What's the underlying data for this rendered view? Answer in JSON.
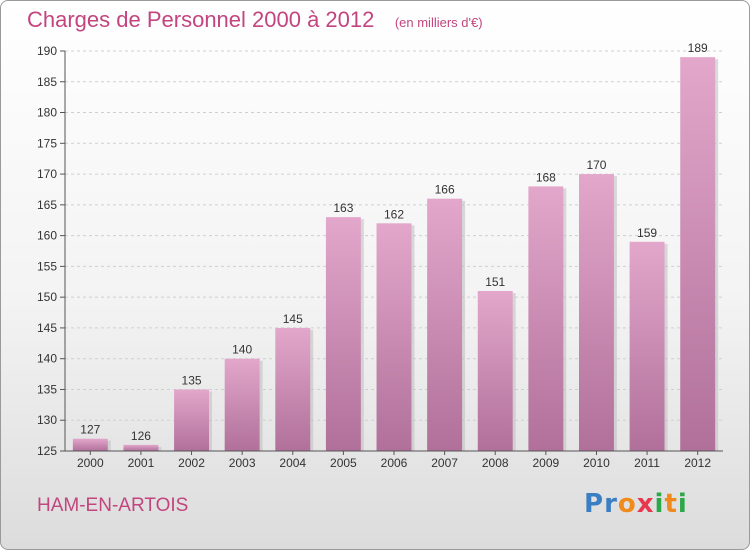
{
  "chart_data": {
    "type": "bar",
    "title": "Charges de Personnel 2000 à 2012",
    "subtitle": "(en milliers d'€)",
    "categories": [
      "2000",
      "2001",
      "2002",
      "2003",
      "2004",
      "2005",
      "2006",
      "2007",
      "2008",
      "2009",
      "2010",
      "2011",
      "2012"
    ],
    "values": [
      127,
      126,
      135,
      140,
      145,
      163,
      162,
      166,
      151,
      168,
      170,
      159,
      189
    ],
    "ylim": [
      125,
      190
    ],
    "yticks": [
      125,
      130,
      135,
      140,
      145,
      150,
      155,
      160,
      165,
      170,
      175,
      180,
      185,
      190
    ],
    "grid": true,
    "bar_color_top": "#e3a7cb",
    "bar_color_bottom": "#b0709a"
  },
  "place_name": "HAM-EN-ARTOIS",
  "logo": {
    "letters": [
      "P",
      "r",
      "o",
      "x",
      "i",
      "t",
      "i"
    ],
    "colors": [
      "#3a7fc4",
      "#3a7fc4",
      "#f08a1c",
      "#e8384f",
      "#2aa84a",
      "#f08a1c",
      "#2aa84a"
    ]
  }
}
